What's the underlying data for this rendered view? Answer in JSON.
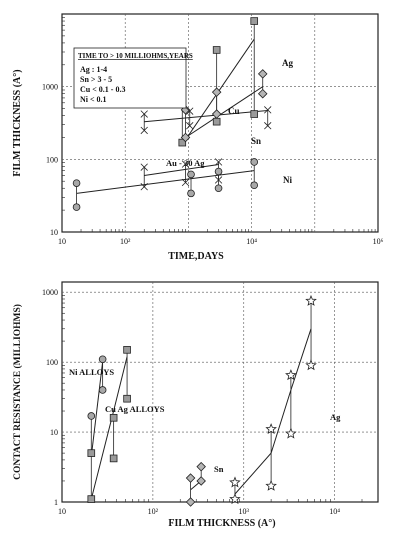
{
  "chart_data": [
    {
      "type": "line",
      "xscale": "log",
      "yscale": "log",
      "xlim": [
        10,
        1000000
      ],
      "ylim": [
        10,
        10000
      ],
      "xlabel": "TIME,DAYS",
      "ylabel": "FILM THICKNESS (A°)",
      "x_tick_labels": [
        "10",
        "10²",
        "10⁴",
        "10⁶"
      ],
      "x_tick_values": [
        10,
        100,
        10000,
        1000000
      ],
      "y_tick_labels": [
        "10",
        "100",
        "1000"
      ],
      "y_tick_values": [
        10,
        100,
        1000
      ],
      "legend_box": {
        "title": "TIME TO > 10 MILLIOHMS,YEARS",
        "lines": [
          "Ag : 1-4",
          "Sn > 3 - 5",
          "Cu < 0.1 - 0.3",
          "Ni < 0.1"
        ]
      },
      "series": [
        {
          "name": "Ag",
          "marker": "square",
          "fit": [
            [
              800,
              160
            ],
            [
              11000,
              4500
            ]
          ],
          "groups": [
            {
              "x": 800,
              "y": [
                170,
                1150
              ]
            },
            {
              "x": 2800,
              "y": [
                330,
                3200
              ]
            },
            {
              "x": 11000,
              "y": [
                420,
                8000
              ]
            }
          ]
        },
        {
          "name": "Cu",
          "marker": "diamond",
          "fit": [
            [
              900,
              200
            ],
            [
              15000,
              1000
            ]
          ],
          "groups": [
            {
              "x": 900,
              "y": [
                200,
                480
              ]
            },
            {
              "x": 2800,
              "y": [
                420,
                840
              ]
            },
            {
              "x": 15000,
              "y": [
                800,
                1500
              ]
            }
          ]
        },
        {
          "name": "Sn",
          "marker": "x",
          "fit": [
            [
              200,
              330
            ],
            [
              18000,
              470
            ]
          ],
          "groups": [
            {
              "x": 200,
              "y": [
                250,
                420
              ]
            },
            {
              "x": 1050,
              "y": [
                290,
                460
              ]
            },
            {
              "x": 18000,
              "y": [
                290,
                480
              ]
            }
          ]
        },
        {
          "name": "Au - 30 Ag",
          "marker": "x",
          "fit": [
            [
              200,
              60
            ],
            [
              3000,
              85
            ]
          ],
          "groups": [
            {
              "x": 200,
              "y": [
                42,
                78
              ]
            },
            {
              "x": 900,
              "y": [
                48,
                86
              ]
            },
            {
              "x": 3000,
              "y": [
                52,
                92
              ]
            }
          ]
        },
        {
          "name": "Ni",
          "marker": "circle",
          "fit": [
            [
              17,
              34
            ],
            [
              11000,
              70
            ]
          ],
          "groups": [
            {
              "x": 17,
              "y": [
                22,
                47
              ]
            },
            {
              "x": 1100,
              "y": [
                34,
                62
              ]
            },
            {
              "x": 3000,
              "y": [
                40,
                68
              ]
            },
            {
              "x": 11000,
              "y": [
                44,
                92
              ]
            }
          ]
        }
      ]
    },
    {
      "type": "line",
      "xscale": "log",
      "yscale": "log",
      "xlim": [
        10,
        30000
      ],
      "ylim": [
        1,
        1400
      ],
      "xlabel": "FILM THICKNESS (A°)",
      "ylabel": "CONTACT RESISTANCE (MILLIOHMS)",
      "x_tick_labels": [
        "10",
        "10²",
        "10³",
        "10⁴"
      ],
      "x_tick_values": [
        10,
        100,
        1000,
        10000
      ],
      "y_tick_labels": [
        "1",
        "10",
        "100",
        "1000"
      ],
      "y_tick_values": [
        1,
        10,
        100,
        1000
      ],
      "series": [
        {
          "name": "Ni ALLOYS",
          "marker": "circle",
          "fit": [
            [
              21,
              4.5
            ],
            [
              28,
              100
            ]
          ],
          "groups": [
            {
              "x": 21,
              "y": [
                5,
                17
              ]
            },
            {
              "x": 28,
              "y": [
                40,
                110
              ]
            }
          ]
        },
        {
          "name": "Cu Ag ALLOYS",
          "marker": "square",
          "fit": [
            [
              21,
              1.1
            ],
            [
              37,
              20
            ],
            [
              52,
              120
            ]
          ],
          "groups": [
            {
              "x": 21,
              "y": [
                1.1,
                5
              ]
            },
            {
              "x": 37,
              "y": [
                4.2,
                16
              ]
            },
            {
              "x": 52,
              "y": [
                30,
                150
              ]
            }
          ]
        },
        {
          "name": "Sn",
          "marker": "diamond",
          "fit": [
            [
              260,
              1.5
            ],
            [
              340,
              2
            ]
          ],
          "groups": [
            {
              "x": 260,
              "y": [
                1,
                2.2
              ]
            },
            {
              "x": 340,
              "y": [
                2,
                3.2
              ]
            }
          ]
        },
        {
          "name": "Ag",
          "marker": "star",
          "fit": [
            [
              800,
              1.3
            ],
            [
              2000,
              5
            ],
            [
              3300,
              40
            ],
            [
              5500,
              300
            ]
          ],
          "groups": [
            {
              "x": 800,
              "y": [
                1.1,
                1.9
              ]
            },
            {
              "x": 2000,
              "y": [
                1.7,
                11
              ]
            },
            {
              "x": 3300,
              "y": [
                9.5,
                65
              ]
            },
            {
              "x": 5500,
              "y": [
                90,
                750
              ]
            }
          ]
        }
      ]
    }
  ]
}
